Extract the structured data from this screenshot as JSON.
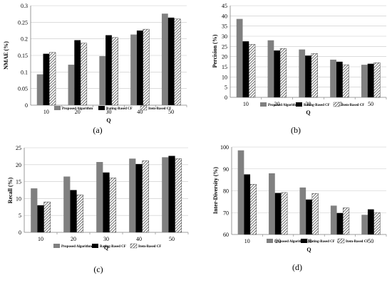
{
  "chart_data": [
    {
      "panel": "(a)",
      "type": "bar",
      "xlabel": "Q",
      "ylabel": "NMAE (%)",
      "categories": [
        "10",
        "20",
        "30",
        "40",
        "50"
      ],
      "ylim": [
        0,
        0.3
      ],
      "yticks": [
        "0",
        "0.05",
        "0.1",
        "0.15",
        "0.2",
        "0.25",
        "0.3"
      ],
      "grid": true,
      "legend_position": "bottom",
      "series": [
        {
          "name": "Proposed Algorithm",
          "values": [
            0.093,
            0.122,
            0.148,
            0.213,
            0.276
          ]
        },
        {
          "name": "Rating-Based CF",
          "values": [
            0.155,
            0.196,
            0.211,
            0.225,
            0.264
          ]
        },
        {
          "name": "Item-Based CF",
          "values": [
            0.159,
            0.187,
            0.204,
            0.229,
            0.26
          ]
        }
      ]
    },
    {
      "panel": "(b)",
      "type": "bar",
      "xlabel": "Q",
      "ylabel": "Percision (%)",
      "categories": [
        "10",
        "20",
        "30",
        "40",
        "50"
      ],
      "ylim": [
        0,
        45
      ],
      "yticks": [
        "0",
        "5",
        "10",
        "15",
        "20",
        "25",
        "30",
        "35",
        "40",
        "45"
      ],
      "grid": true,
      "legend_position": "bottom",
      "series": [
        {
          "name": "Proposed Algorithm",
          "values": [
            38.5,
            28.0,
            23.5,
            18.5,
            16.0
          ]
        },
        {
          "name": "Rating-Based CF",
          "values": [
            27.5,
            23.0,
            20.5,
            17.5,
            16.5
          ]
        },
        {
          "name": "Item-Based CF",
          "values": [
            26.0,
            24.0,
            21.5,
            16.0,
            17.0
          ]
        }
      ]
    },
    {
      "panel": "(c)",
      "type": "bar",
      "xlabel": "Q",
      "ylabel": "Recall (%)",
      "categories": [
        "10",
        "20",
        "30",
        "40",
        "50"
      ],
      "ylim": [
        0,
        25
      ],
      "yticks": [
        "0",
        "5",
        "10",
        "15",
        "20",
        "25"
      ],
      "grid": true,
      "legend_position": "bottom",
      "series": [
        {
          "name": "Proposed Algorithm",
          "values": [
            13.0,
            16.5,
            20.8,
            21.8,
            22.2
          ]
        },
        {
          "name": "Rating-Based CF",
          "values": [
            8.0,
            12.5,
            17.7,
            20.2,
            22.6
          ]
        },
        {
          "name": "Item-Based CF",
          "values": [
            9.0,
            11.1,
            16.1,
            21.2,
            21.8
          ]
        }
      ]
    },
    {
      "panel": "(d)",
      "type": "bar",
      "xlabel": "Q",
      "ylabel": "Inter-Diversity (%)",
      "categories": [
        "10",
        "20",
        "30",
        "40",
        "50"
      ],
      "ylim": [
        60,
        100
      ],
      "yticks": [
        "60",
        "70",
        "80",
        "90",
        "100"
      ],
      "grid": true,
      "legend_position": "bottom",
      "series": [
        {
          "name": "Proposed Algorithm",
          "values": [
            98.5,
            88.0,
            81.5,
            73.2,
            69.0
          ]
        },
        {
          "name": "Rating-Based CF",
          "values": [
            87.5,
            79.0,
            76.0,
            69.8,
            71.5
          ]
        },
        {
          "name": "Item-Based CF",
          "values": [
            83.0,
            79.2,
            78.8,
            72.2,
            70.0
          ]
        }
      ]
    }
  ],
  "colors": {
    "proposed": "#808080",
    "rating": "#000000",
    "item_fill": "#ffffff",
    "item_hatch": "#555555",
    "grid": "#c8c8c8",
    "axis": "#7f7f7f"
  }
}
